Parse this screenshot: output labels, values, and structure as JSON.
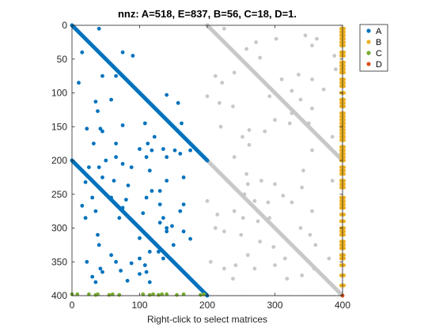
{
  "chart_data": {
    "type": "scatter",
    "title": "nnz: A=518, E=837, B=56, C=18, D=1.",
    "xlabel": "Right-click to select matrices",
    "ylabel": "",
    "xlim": [
      0,
      400
    ],
    "ylim": [
      400,
      0
    ],
    "y_reversed": true,
    "grid": false,
    "legend_position": "top-right-outside",
    "x_ticks": [
      "0",
      "100",
      "200",
      "300",
      "400"
    ],
    "y_ticks": [
      "0",
      "50",
      "100",
      "150",
      "200",
      "250",
      "300",
      "350",
      "400"
    ],
    "x_tick_values": [
      0,
      100,
      200,
      300,
      400
    ],
    "y_tick_values": [
      0,
      50,
      100,
      150,
      200,
      250,
      300,
      350,
      400
    ],
    "reference_lines": [
      {
        "orientation": "vertical",
        "value": 400,
        "style": "dotted",
        "color": "#7E2F8E"
      },
      {
        "orientation": "horizontal",
        "value": 400,
        "style": "dotted",
        "color": "#7E2F8E"
      }
    ],
    "series": [
      {
        "name": "A",
        "color": "#0072BD",
        "diagonals": [
          {
            "x": [
              0,
              200
            ],
            "y": [
              0,
              200
            ]
          },
          {
            "x": [
              0,
              200
            ],
            "y": [
              200,
              400
            ]
          }
        ],
        "points": [
          [
            40,
            5
          ],
          [
            75,
            40
          ],
          [
            90,
            45
          ],
          [
            15,
            40
          ],
          [
            45,
            75
          ],
          [
            65,
            75
          ],
          [
            10,
            85
          ],
          [
            35,
            113
          ],
          [
            38,
            127
          ],
          [
            58,
            110
          ],
          [
            22,
            153
          ],
          [
            42,
            153
          ],
          [
            45,
            157
          ],
          [
            75,
            148
          ],
          [
            32,
            175
          ],
          [
            65,
            175
          ],
          [
            108,
            145
          ],
          [
            122,
            165
          ],
          [
            162,
            145
          ],
          [
            140,
            103
          ],
          [
            157,
            115
          ],
          [
            100,
            183
          ],
          [
            112,
            175
          ],
          [
            118,
            185
          ],
          [
            110,
            195
          ],
          [
            65,
            195
          ],
          [
            25,
            210
          ],
          [
            40,
            210
          ],
          [
            50,
            200
          ],
          [
            75,
            205
          ],
          [
            88,
            210
          ],
          [
            135,
            183
          ],
          [
            140,
            195
          ],
          [
            152,
            185
          ],
          [
            160,
            190
          ],
          [
            175,
            185
          ],
          [
            45,
            225
          ],
          [
            62,
            230
          ],
          [
            83,
            237
          ],
          [
            115,
            215
          ],
          [
            118,
            245
          ],
          [
            130,
            245
          ],
          [
            140,
            230
          ],
          [
            165,
            225
          ],
          [
            20,
            232
          ],
          [
            30,
            255
          ],
          [
            15,
            267
          ],
          [
            35,
            275
          ],
          [
            58,
            255
          ],
          [
            80,
            258
          ],
          [
            75,
            270
          ],
          [
            110,
            255
          ],
          [
            130,
            265
          ],
          [
            160,
            275
          ],
          [
            165,
            265
          ],
          [
            20,
            285
          ],
          [
            70,
            285
          ],
          [
            100,
            300
          ],
          [
            105,
            278
          ],
          [
            148,
            297
          ],
          [
            135,
            285
          ],
          [
            130,
            292
          ],
          [
            140,
            300
          ],
          [
            100,
            315
          ],
          [
            38,
            310
          ],
          [
            40,
            325
          ],
          [
            22,
            350
          ],
          [
            42,
            360
          ],
          [
            65,
            350
          ],
          [
            88,
            352
          ],
          [
            100,
            345
          ],
          [
            58,
            340
          ],
          [
            45,
            365
          ],
          [
            150,
            325
          ],
          [
            115,
            335
          ],
          [
            140,
            305
          ],
          [
            165,
            305
          ],
          [
            175,
            316
          ],
          [
            128,
            335
          ],
          [
            135,
            345
          ],
          [
            108,
            355
          ],
          [
            110,
            365
          ],
          [
            100,
            368
          ],
          [
            82,
            378
          ],
          [
            72,
            363
          ],
          [
            30,
            372
          ],
          [
            35,
            380
          ],
          [
            115,
            380
          ]
        ]
      },
      {
        "name": "B",
        "color": "#EDB120",
        "columns": [
          398,
          402
        ],
        "y_values": [
          5,
          10,
          15,
          20,
          25,
          30,
          40,
          45,
          55,
          60,
          65,
          70,
          80,
          85,
          90,
          100,
          110,
          115,
          120,
          130,
          135,
          140,
          145,
          150,
          155,
          160,
          165,
          170,
          180,
          185,
          190,
          195,
          200,
          210,
          215,
          220,
          230,
          235,
          240,
          255,
          260,
          265,
          270,
          280,
          290,
          300,
          305,
          310,
          320,
          325,
          330,
          340,
          345,
          355,
          370,
          385
        ]
      },
      {
        "name": "C",
        "color": "#77AC30",
        "points": [
          [
            0,
            398
          ],
          [
            8,
            398
          ],
          [
            25,
            398
          ],
          [
            35,
            399
          ],
          [
            38,
            398
          ],
          [
            55,
            399
          ],
          [
            60,
            398
          ],
          [
            70,
            399
          ],
          [
            105,
            398
          ],
          [
            115,
            399
          ],
          [
            120,
            398
          ],
          [
            128,
            399
          ],
          [
            133,
            398
          ],
          [
            140,
            398
          ],
          [
            155,
            399
          ],
          [
            165,
            398
          ],
          [
            190,
            399
          ],
          [
            195,
            398
          ]
        ]
      },
      {
        "name": "D",
        "color": "#D95319",
        "points": [
          [
            400,
            400
          ]
        ]
      },
      {
        "name": "",
        "color": "#C8C8C8",
        "diagonals": [
          {
            "x": [
              200,
              400
            ],
            "y": [
              200,
              400
            ]
          },
          {
            "x": [
              200,
              400
            ],
            "y": [
              0,
              200
            ]
          }
        ],
        "points": [
          [
            225,
            5
          ],
          [
            272,
            25
          ],
          [
            258,
            35
          ],
          [
            302,
            20
          ],
          [
            345,
            15
          ],
          [
            362,
            20
          ],
          [
            355,
            30
          ],
          [
            388,
            45
          ],
          [
            390,
            65
          ],
          [
            278,
            48
          ],
          [
            240,
            70
          ],
          [
            212,
            75
          ],
          [
            222,
            85
          ],
          [
            310,
            80
          ],
          [
            335,
            73
          ],
          [
            355,
            80
          ],
          [
            372,
            95
          ],
          [
            338,
            110
          ],
          [
            355,
            123
          ],
          [
            200,
            105
          ],
          [
            218,
            115
          ],
          [
            238,
            120
          ],
          [
            292,
            105
          ],
          [
            325,
            97
          ],
          [
            325,
            130
          ],
          [
            322,
            145
          ],
          [
            350,
            145
          ],
          [
            220,
            150
          ],
          [
            252,
            165
          ],
          [
            262,
            155
          ],
          [
            285,
            157
          ],
          [
            300,
            140
          ],
          [
            262,
            177
          ],
          [
            240,
            195
          ],
          [
            258,
            220
          ],
          [
            260,
            235
          ],
          [
            280,
            230
          ],
          [
            300,
            235
          ],
          [
            342,
            215
          ],
          [
            355,
            185
          ],
          [
            385,
            165
          ],
          [
            380,
            180
          ],
          [
            270,
            260
          ],
          [
            290,
            262
          ],
          [
            255,
            250
          ],
          [
            312,
            252
          ],
          [
            325,
            262
          ],
          [
            340,
            240
          ],
          [
            355,
            275
          ],
          [
            385,
            230
          ],
          [
            200,
            260
          ],
          [
            215,
            280
          ],
          [
            240,
            275
          ],
          [
            253,
            285
          ],
          [
            275,
            290
          ],
          [
            292,
            285
          ],
          [
            338,
            300
          ],
          [
            352,
            310
          ],
          [
            212,
            300
          ],
          [
            225,
            305
          ],
          [
            250,
            310
          ],
          [
            260,
            340
          ],
          [
            242,
            355
          ],
          [
            205,
            350
          ],
          [
            225,
            360
          ],
          [
            238,
            375
          ],
          [
            270,
            360
          ],
          [
            300,
            355
          ],
          [
            315,
            345
          ],
          [
            318,
            375
          ],
          [
            340,
            370
          ],
          [
            358,
            360
          ],
          [
            380,
            345
          ],
          [
            360,
            325
          ],
          [
            298,
            328
          ],
          [
            278,
            320
          ]
        ]
      }
    ]
  }
}
